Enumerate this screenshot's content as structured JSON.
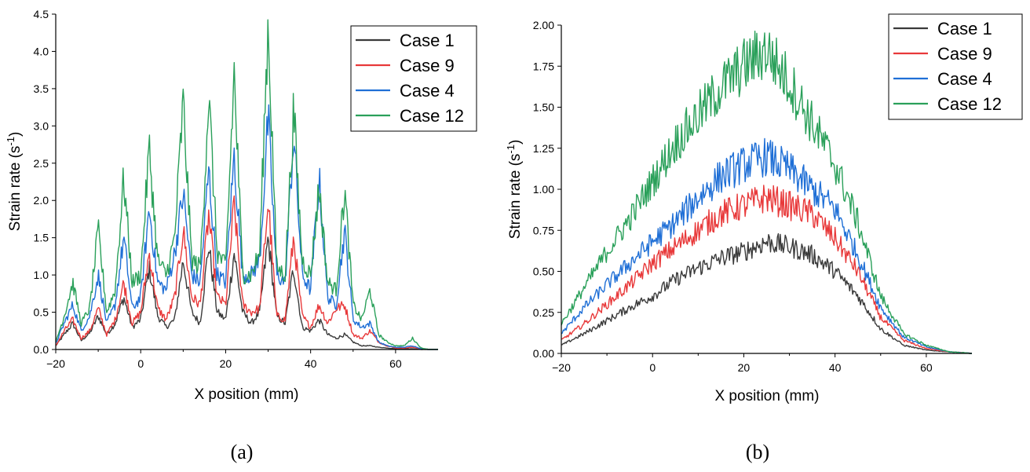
{
  "chart_data": [
    {
      "type": "line",
      "panel_label": "(a)",
      "xlabel": "X position (mm)",
      "ylabel_main": "Strain rate (s",
      "ylabel_sup": "-1",
      "ylabel_close": ")",
      "xlim": [
        -20,
        70
      ],
      "ylim": [
        0,
        4.5
      ],
      "xticks": [
        -20,
        0,
        20,
        40,
        60
      ],
      "xtick_labels": [
        "−20",
        "0",
        "20",
        "40",
        "60"
      ],
      "yticks": [
        0,
        0.5,
        1.0,
        1.5,
        2.0,
        2.5,
        3.0,
        3.5,
        4.0,
        4.5
      ],
      "ytick_labels": [
        "0.0",
        "0.5",
        "1.0",
        "1.5",
        "2.0",
        "2.5",
        "3.0",
        "3.5",
        "4.0",
        "4.5"
      ],
      "legend_position": "top-right",
      "series": [
        {
          "name": "Case 1",
          "color": "#3a3a3a",
          "x": [
            -20,
            -18,
            -16,
            -14,
            -12,
            -10,
            -8,
            -6,
            -4,
            -2,
            0,
            2,
            4,
            6,
            8,
            10,
            12,
            14,
            16,
            18,
            20,
            22,
            24,
            26,
            28,
            30,
            32,
            34,
            36,
            38,
            40,
            42,
            44,
            46,
            48,
            50,
            52,
            54,
            56,
            58,
            60,
            62,
            64,
            66,
            68,
            70
          ],
          "y": [
            0.05,
            0.2,
            0.35,
            0.12,
            0.22,
            0.45,
            0.2,
            0.35,
            0.7,
            0.3,
            0.4,
            1.1,
            0.45,
            0.3,
            0.4,
            1.2,
            0.5,
            0.35,
            1.4,
            0.5,
            0.4,
            1.3,
            0.5,
            0.35,
            0.5,
            1.5,
            0.45,
            0.35,
            1.1,
            0.3,
            0.25,
            0.4,
            0.2,
            0.15,
            0.2,
            0.1,
            0.05,
            0.05,
            0.03,
            0.02,
            0.01,
            0.01,
            0.01,
            0.0,
            0.0,
            0.0
          ]
        },
        {
          "name": "Case 9",
          "color": "#e8393a",
          "x": [
            -20,
            -18,
            -16,
            -14,
            -12,
            -10,
            -8,
            -6,
            -4,
            -2,
            0,
            2,
            4,
            6,
            8,
            10,
            12,
            14,
            16,
            18,
            20,
            22,
            24,
            26,
            28,
            30,
            32,
            34,
            36,
            38,
            40,
            42,
            44,
            46,
            48,
            50,
            52,
            54,
            56,
            58,
            60,
            62,
            64,
            66,
            68,
            70
          ],
          "y": [
            0.05,
            0.25,
            0.4,
            0.15,
            0.25,
            0.55,
            0.2,
            0.4,
            0.9,
            0.35,
            0.5,
            1.3,
            0.55,
            0.4,
            0.7,
            1.6,
            0.7,
            0.6,
            1.8,
            0.7,
            0.6,
            1.95,
            0.6,
            0.5,
            0.55,
            2.0,
            0.45,
            0.4,
            1.5,
            0.45,
            0.3,
            0.6,
            0.35,
            0.55,
            0.6,
            0.2,
            0.15,
            0.25,
            0.1,
            0.05,
            0.02,
            0.02,
            0.03,
            0.01,
            0.0,
            0.0
          ]
        },
        {
          "name": "Case 4",
          "color": "#1f6fd6",
          "x": [
            -20,
            -18,
            -16,
            -14,
            -12,
            -10,
            -8,
            -6,
            -4,
            -2,
            0,
            2,
            4,
            6,
            8,
            10,
            12,
            14,
            16,
            18,
            20,
            22,
            24,
            26,
            28,
            30,
            32,
            34,
            36,
            38,
            40,
            42,
            44,
            46,
            48,
            50,
            52,
            54,
            56,
            58,
            60,
            62,
            64,
            66,
            68,
            70
          ],
          "y": [
            0.08,
            0.35,
            0.6,
            0.25,
            0.45,
            1.0,
            0.35,
            0.6,
            1.5,
            0.55,
            0.7,
            1.9,
            0.9,
            0.8,
            1.3,
            2.1,
            1.0,
            0.9,
            2.4,
            1.0,
            0.9,
            2.6,
            1.0,
            1.0,
            1.2,
            3.1,
            1.0,
            0.9,
            2.9,
            1.0,
            0.8,
            2.3,
            0.7,
            0.6,
            1.6,
            0.4,
            0.3,
            0.35,
            0.1,
            0.05,
            0.03,
            0.03,
            0.05,
            0.01,
            0.0,
            0.0
          ]
        },
        {
          "name": "Case 12",
          "color": "#2aa05a",
          "x": [
            -20,
            -18,
            -16,
            -14,
            -12,
            -10,
            -8,
            -6,
            -4,
            -2,
            0,
            2,
            4,
            6,
            8,
            10,
            12,
            14,
            16,
            18,
            20,
            22,
            24,
            26,
            28,
            30,
            32,
            34,
            36,
            38,
            40,
            42,
            44,
            46,
            48,
            50,
            52,
            54,
            56,
            58,
            60,
            62,
            64,
            66,
            68,
            70
          ],
          "y": [
            0.1,
            0.45,
            0.9,
            0.35,
            0.55,
            1.6,
            0.5,
            0.8,
            2.3,
            0.9,
            1.0,
            2.7,
            1.2,
            1.0,
            1.5,
            3.3,
            1.2,
            1.1,
            3.4,
            1.3,
            1.1,
            3.7,
            1.0,
            1.0,
            1.3,
            4.4,
            1.1,
            1.0,
            3.2,
            1.2,
            1.0,
            2.2,
            0.9,
            0.8,
            2.15,
            0.6,
            0.4,
            0.8,
            0.2,
            0.1,
            0.05,
            0.05,
            0.15,
            0.02,
            0.0,
            0.0
          ]
        }
      ]
    },
    {
      "type": "line",
      "panel_label": "(b)",
      "xlabel": "X position (mm)",
      "ylabel_main": "Strain rate (s",
      "ylabel_sup": "-1",
      "ylabel_close": ")",
      "xlim": [
        -20,
        70
      ],
      "ylim": [
        0,
        2.0
      ],
      "xticks": [
        -20,
        0,
        20,
        40,
        60
      ],
      "xtick_labels": [
        "−20",
        "0",
        "20",
        "40",
        "60"
      ],
      "yticks": [
        0,
        0.25,
        0.5,
        0.75,
        1.0,
        1.25,
        1.5,
        1.75,
        2.0
      ],
      "ytick_labels": [
        "0.00",
        "0.25",
        "0.50",
        "0.75",
        "1.00",
        "1.25",
        "1.50",
        "1.75",
        "2.00"
      ],
      "legend_position": "top-right",
      "series": [
        {
          "name": "Case 1",
          "color": "#3a3a3a",
          "x": [
            -20,
            -15,
            -10,
            -5,
            0,
            5,
            10,
            15,
            20,
            25,
            30,
            35,
            40,
            45,
            50,
            55,
            60,
            65,
            70
          ],
          "y": [
            0.05,
            0.12,
            0.2,
            0.28,
            0.35,
            0.45,
            0.52,
            0.58,
            0.62,
            0.68,
            0.65,
            0.6,
            0.5,
            0.35,
            0.15,
            0.05,
            0.02,
            0.01,
            0.0
          ]
        },
        {
          "name": "Case 9",
          "color": "#e8393a",
          "x": [
            -20,
            -15,
            -10,
            -5,
            0,
            5,
            10,
            15,
            20,
            25,
            30,
            35,
            40,
            45,
            50,
            55,
            60,
            65,
            70
          ],
          "y": [
            0.08,
            0.18,
            0.3,
            0.42,
            0.55,
            0.65,
            0.75,
            0.85,
            0.9,
            0.95,
            0.9,
            0.85,
            0.7,
            0.5,
            0.22,
            0.08,
            0.03,
            0.01,
            0.0
          ]
        },
        {
          "name": "Case 4",
          "color": "#1f6fd6",
          "x": [
            -20,
            -15,
            -10,
            -5,
            0,
            5,
            10,
            15,
            20,
            25,
            30,
            35,
            40,
            45,
            50,
            55,
            60,
            65,
            70
          ],
          "y": [
            0.12,
            0.28,
            0.42,
            0.55,
            0.68,
            0.8,
            0.95,
            1.08,
            1.15,
            1.2,
            1.12,
            1.0,
            0.88,
            0.6,
            0.28,
            0.1,
            0.04,
            0.01,
            0.0
          ]
        },
        {
          "name": "Case 12",
          "color": "#2aa05a",
          "x": [
            -20,
            -15,
            -10,
            -5,
            0,
            5,
            10,
            15,
            20,
            25,
            30,
            35,
            40,
            45,
            50,
            55,
            60,
            65,
            70
          ],
          "y": [
            0.18,
            0.4,
            0.62,
            0.82,
            1.05,
            1.28,
            1.45,
            1.62,
            1.75,
            1.85,
            1.65,
            1.4,
            1.15,
            0.8,
            0.35,
            0.12,
            0.05,
            0.01,
            0.0
          ]
        }
      ]
    }
  ]
}
